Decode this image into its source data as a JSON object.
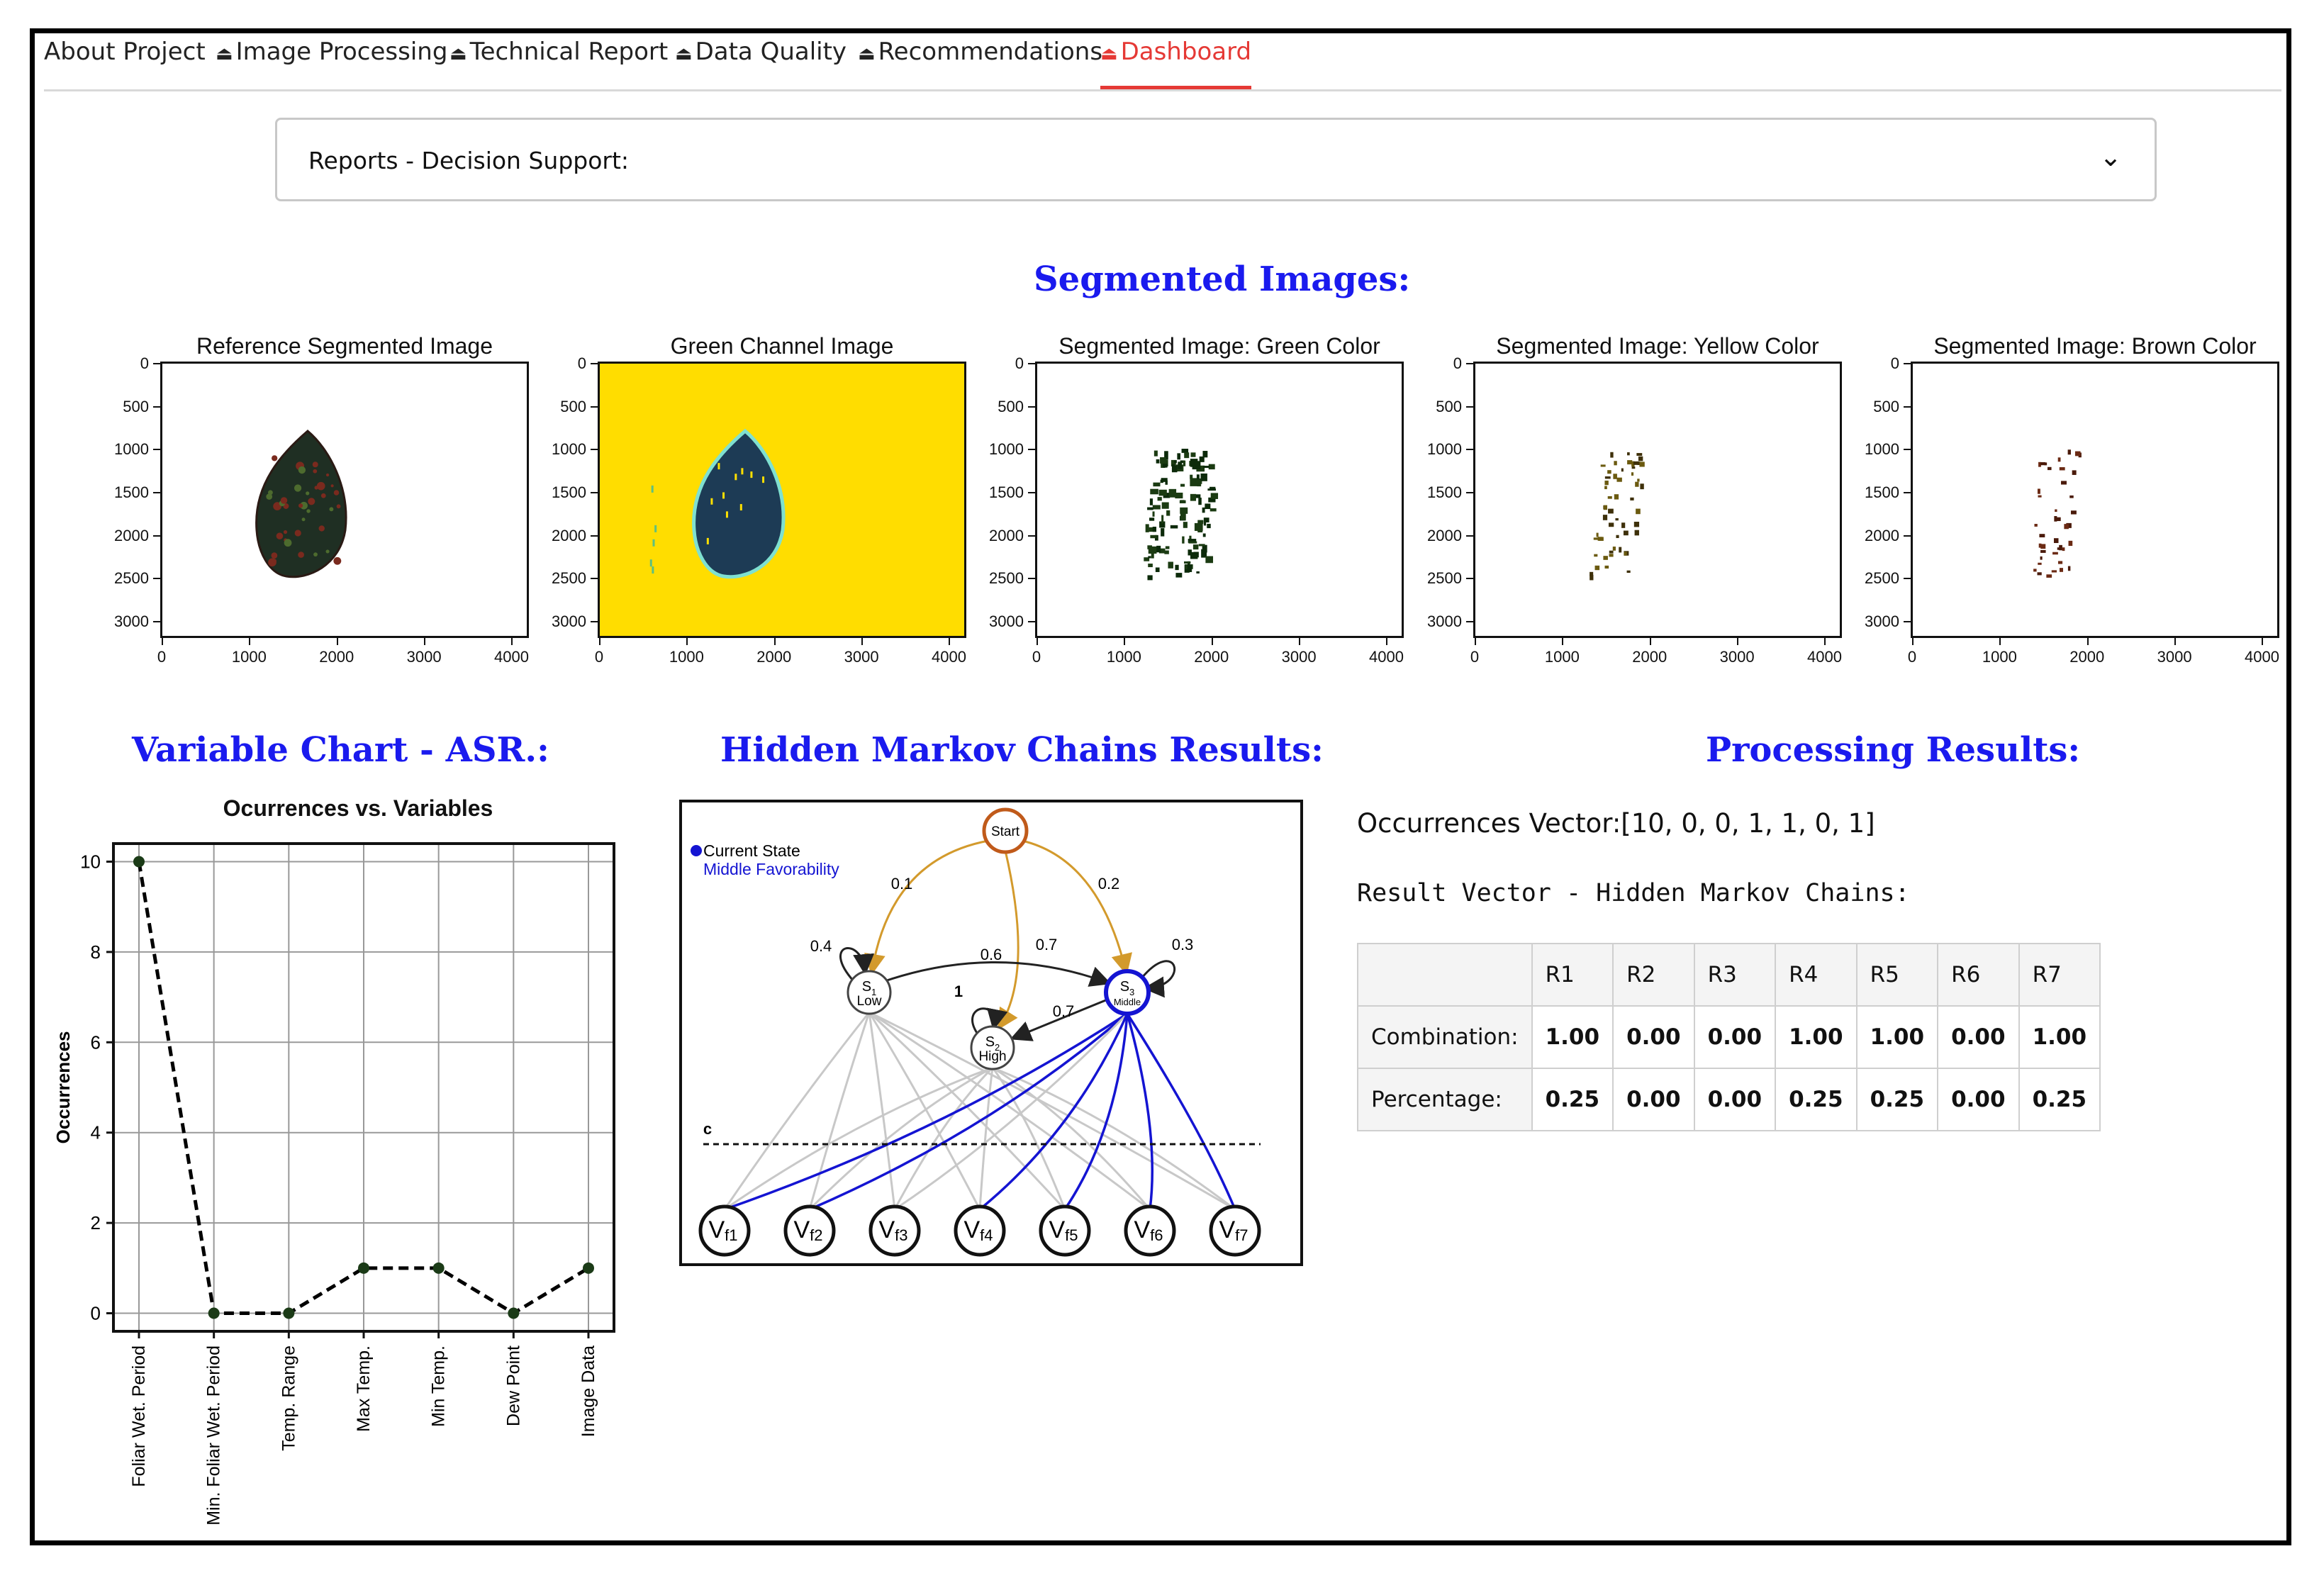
{
  "nav": {
    "tabs": [
      {
        "label": "About Project",
        "icon": "about-icon",
        "active": false
      },
      {
        "label": "Image Processing",
        "icon": "tab-icon",
        "active": false
      },
      {
        "label": "Technical Report",
        "icon": "tab-icon",
        "active": false
      },
      {
        "label": "Data Quality",
        "icon": "tab-icon",
        "active": false
      },
      {
        "label": "Recommendations",
        "icon": "tab-icon",
        "active": false
      },
      {
        "label": "Dashboard",
        "icon": "tab-icon",
        "active": true
      }
    ]
  },
  "dropdown": {
    "label": "Reports - Decision Support:"
  },
  "segmented": {
    "heading": "Segmented Images:",
    "plots": [
      {
        "title": "Reference Segmented Image"
      },
      {
        "title": "Green Channel Image"
      },
      {
        "title": "Segmented Image: Green Color"
      },
      {
        "title": "Segmented Image: Yellow Color"
      },
      {
        "title": "Segmented Image: Brown Color"
      }
    ],
    "y_ticks": [
      "0",
      "500",
      "1000",
      "1500",
      "2000",
      "2500",
      "3000"
    ],
    "x_ticks": [
      "0",
      "1000",
      "2000",
      "3000",
      "4000"
    ],
    "colors": {
      "yellow_bg": "#ffdd00",
      "leaf_dark": "#1f2f23",
      "leaf_blue": "#1d3b55"
    }
  },
  "variable_chart": {
    "heading": "Variable Chart - ASR.:",
    "chart_data": {
      "type": "line",
      "title": "Ocurrences vs. Variables",
      "ylabel": "Occurrences",
      "xlabel": "",
      "categories": [
        "Foliar Wet. Period",
        "Min. Foliar Wet. Period",
        "Temp. Range",
        "Max Temp.",
        "Min Temp.",
        "Dew Point",
        "Image Data"
      ],
      "values": [
        10,
        0,
        0,
        1,
        1,
        0,
        1
      ],
      "ylim": [
        -0.4,
        10.4
      ],
      "y_ticks": [
        "0",
        "2",
        "4",
        "6",
        "8",
        "10"
      ],
      "grid": true,
      "line_style": "dashed",
      "color": "#000000",
      "marker_color": "#1b3b17"
    }
  },
  "hmm": {
    "heading": "Hidden Markov Chains Results:",
    "legend_line1": "Current State",
    "legend_line2": "Middle Favorability",
    "start": "Start",
    "s1": {
      "sub": "1",
      "name": "Low"
    },
    "s2": {
      "sub": "2",
      "name": "High"
    },
    "s3": {
      "sub": "3",
      "name": "Middle"
    },
    "probs": {
      "start_s1": "0.1",
      "start_s3": "0.2",
      "start_s2": "0.7",
      "s1_self": "0.4",
      "s1_s3": "0.6",
      "s3_self": "0.3",
      "s2_self": "1",
      "s3_s2": "0.7"
    },
    "c_label": "c",
    "vars": [
      "f1",
      "f2",
      "f3",
      "f4",
      "f5",
      "f6",
      "f7"
    ],
    "colors": {
      "current": "#1414d2",
      "orange": "#d39a2c",
      "gray": "#c8c8c8"
    }
  },
  "processing": {
    "heading": "Processing Results:",
    "occurrences_text": "Occurrences Vector:[10, 0, 0, 1, 1, 0, 1]",
    "result_label": "Result Vector - Hidden Markov Chains:",
    "table": {
      "headers": [
        "",
        "R1",
        "R2",
        "R3",
        "R4",
        "R5",
        "R6",
        "R7"
      ],
      "rows": [
        {
          "label": "Combination:",
          "values": [
            "1.00",
            "0.00",
            "0.00",
            "1.00",
            "1.00",
            "0.00",
            "1.00"
          ]
        },
        {
          "label": "Percentage:",
          "values": [
            "0.25",
            "0.00",
            "0.00",
            "0.25",
            "0.25",
            "0.00",
            "0.25"
          ]
        }
      ]
    }
  }
}
